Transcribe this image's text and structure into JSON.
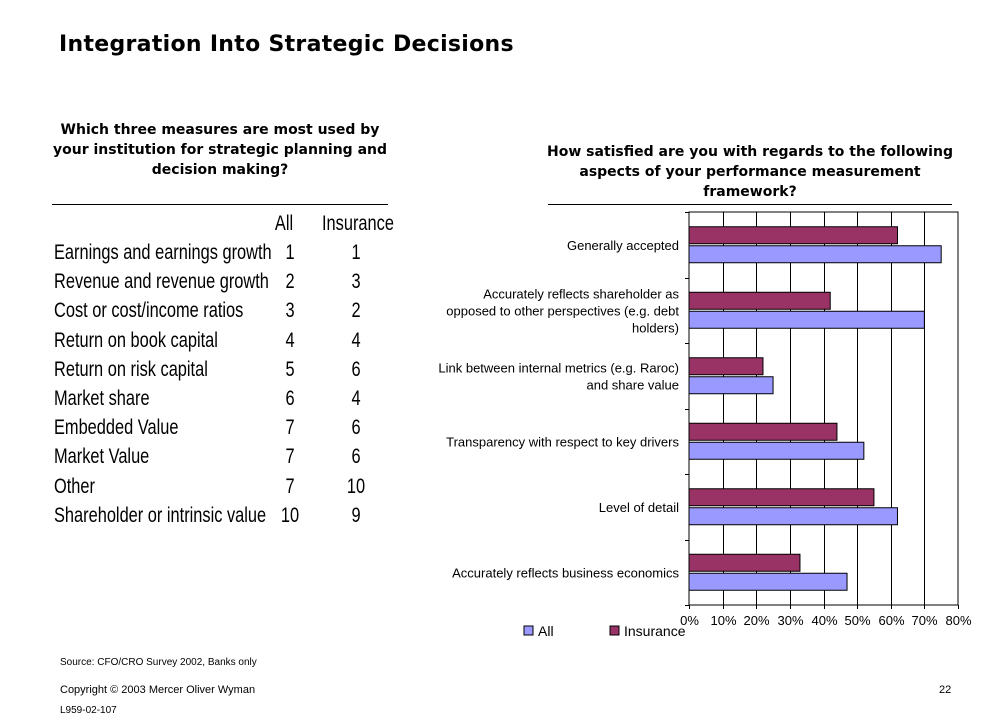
{
  "title": "Integration Into Strategic Decisions",
  "left_panel": {
    "question": "Which three measures are most used by your institution for strategic planning and decision making?",
    "columns": [
      "All",
      "Insurance"
    ],
    "rows": [
      {
        "measure": "Earnings and earnings growth",
        "all": "1",
        "insurance": "1"
      },
      {
        "measure": "Revenue and revenue growth",
        "all": "2",
        "insurance": "3"
      },
      {
        "measure": "Cost or cost/income ratios",
        "all": "3",
        "insurance": "2"
      },
      {
        "measure": "Return on book capital",
        "all": "4",
        "insurance": "4"
      },
      {
        "measure": "Return on risk capital",
        "all": "5",
        "insurance": "6"
      },
      {
        "measure": "Market share",
        "all": "6",
        "insurance": "4"
      },
      {
        "measure": "Embedded Value",
        "all": "7",
        "insurance": "6"
      },
      {
        "measure": "Market Value",
        "all": "7",
        "insurance": "6"
      },
      {
        "measure": "Other",
        "all": "7",
        "insurance": "10"
      },
      {
        "measure": "Shareholder or intrinsic value",
        "all": "10",
        "insurance": "9"
      }
    ]
  },
  "right_panel": {
    "question": "How satisfied are you with regards to the following aspects of your performance measurement framework?"
  },
  "chart_data": {
    "type": "bar",
    "orientation": "horizontal",
    "categories": [
      [
        "Generally accepted"
      ],
      [
        "Accurately reflects shareholder as",
        "opposed to other perspectives (e.g. debt",
        "holders)"
      ],
      [
        "Link between internal metrics (e.g. Raroc)",
        "and share value"
      ],
      [
        "Transparency with respect to key drivers"
      ],
      [
        "Level of detail"
      ],
      [
        "Accurately reflects business economics"
      ]
    ],
    "series": [
      {
        "name": "Insurance",
        "color": "#993366",
        "values": [
          62,
          42,
          22,
          44,
          55,
          33
        ]
      },
      {
        "name": "All",
        "color": "#9999ff",
        "values": [
          75,
          70,
          25,
          52,
          62,
          47
        ]
      }
    ],
    "xlim": [
      0,
      80
    ],
    "xticks": [
      "0%",
      "10%",
      "20%",
      "30%",
      "40%",
      "50%",
      "60%",
      "70%",
      "80%"
    ],
    "legend": {
      "position": "bottom",
      "entries": [
        "All",
        "Insurance"
      ]
    },
    "grid": true
  },
  "footer": {
    "source": "Source: CFO/CRO Survey 2002, Banks only",
    "copyright": "Copyright © 2003 Mercer Oliver Wyman",
    "page_number": "22",
    "doc_code": "L959-02-107"
  }
}
